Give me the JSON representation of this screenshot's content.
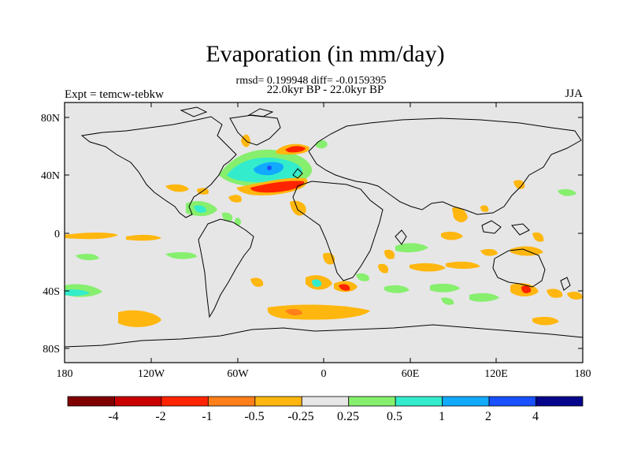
{
  "header": {
    "title": "Evaporation (in mm/day)",
    "stats": "rmsd= 0.199948 diff= -0.0159395",
    "period": "22.0kyr BP - 22.0kyr BP",
    "experiment": "Expt = temcw-tebkw",
    "season": "JJA"
  },
  "map": {
    "y_ticks": [
      "80N",
      "40N",
      "0",
      "40S",
      "80S"
    ],
    "x_ticks": [
      "180",
      "120W",
      "60W",
      "0",
      "60E",
      "120E",
      "180"
    ],
    "background_color": "#e6e6e6"
  },
  "colorbar": {
    "labels": [
      "-4",
      "-2",
      "-1",
      "-0.5",
      "-0.25",
      "0.25",
      "0.5",
      "1",
      "2",
      "4"
    ],
    "colors": [
      "#800000",
      "#c80000",
      "#ff2400",
      "#ff7f1a",
      "#ffb70f",
      "#e6e6e6",
      "#87ef6e",
      "#33eccc",
      "#11aaff",
      "#1950ff",
      "#05058c"
    ]
  }
}
